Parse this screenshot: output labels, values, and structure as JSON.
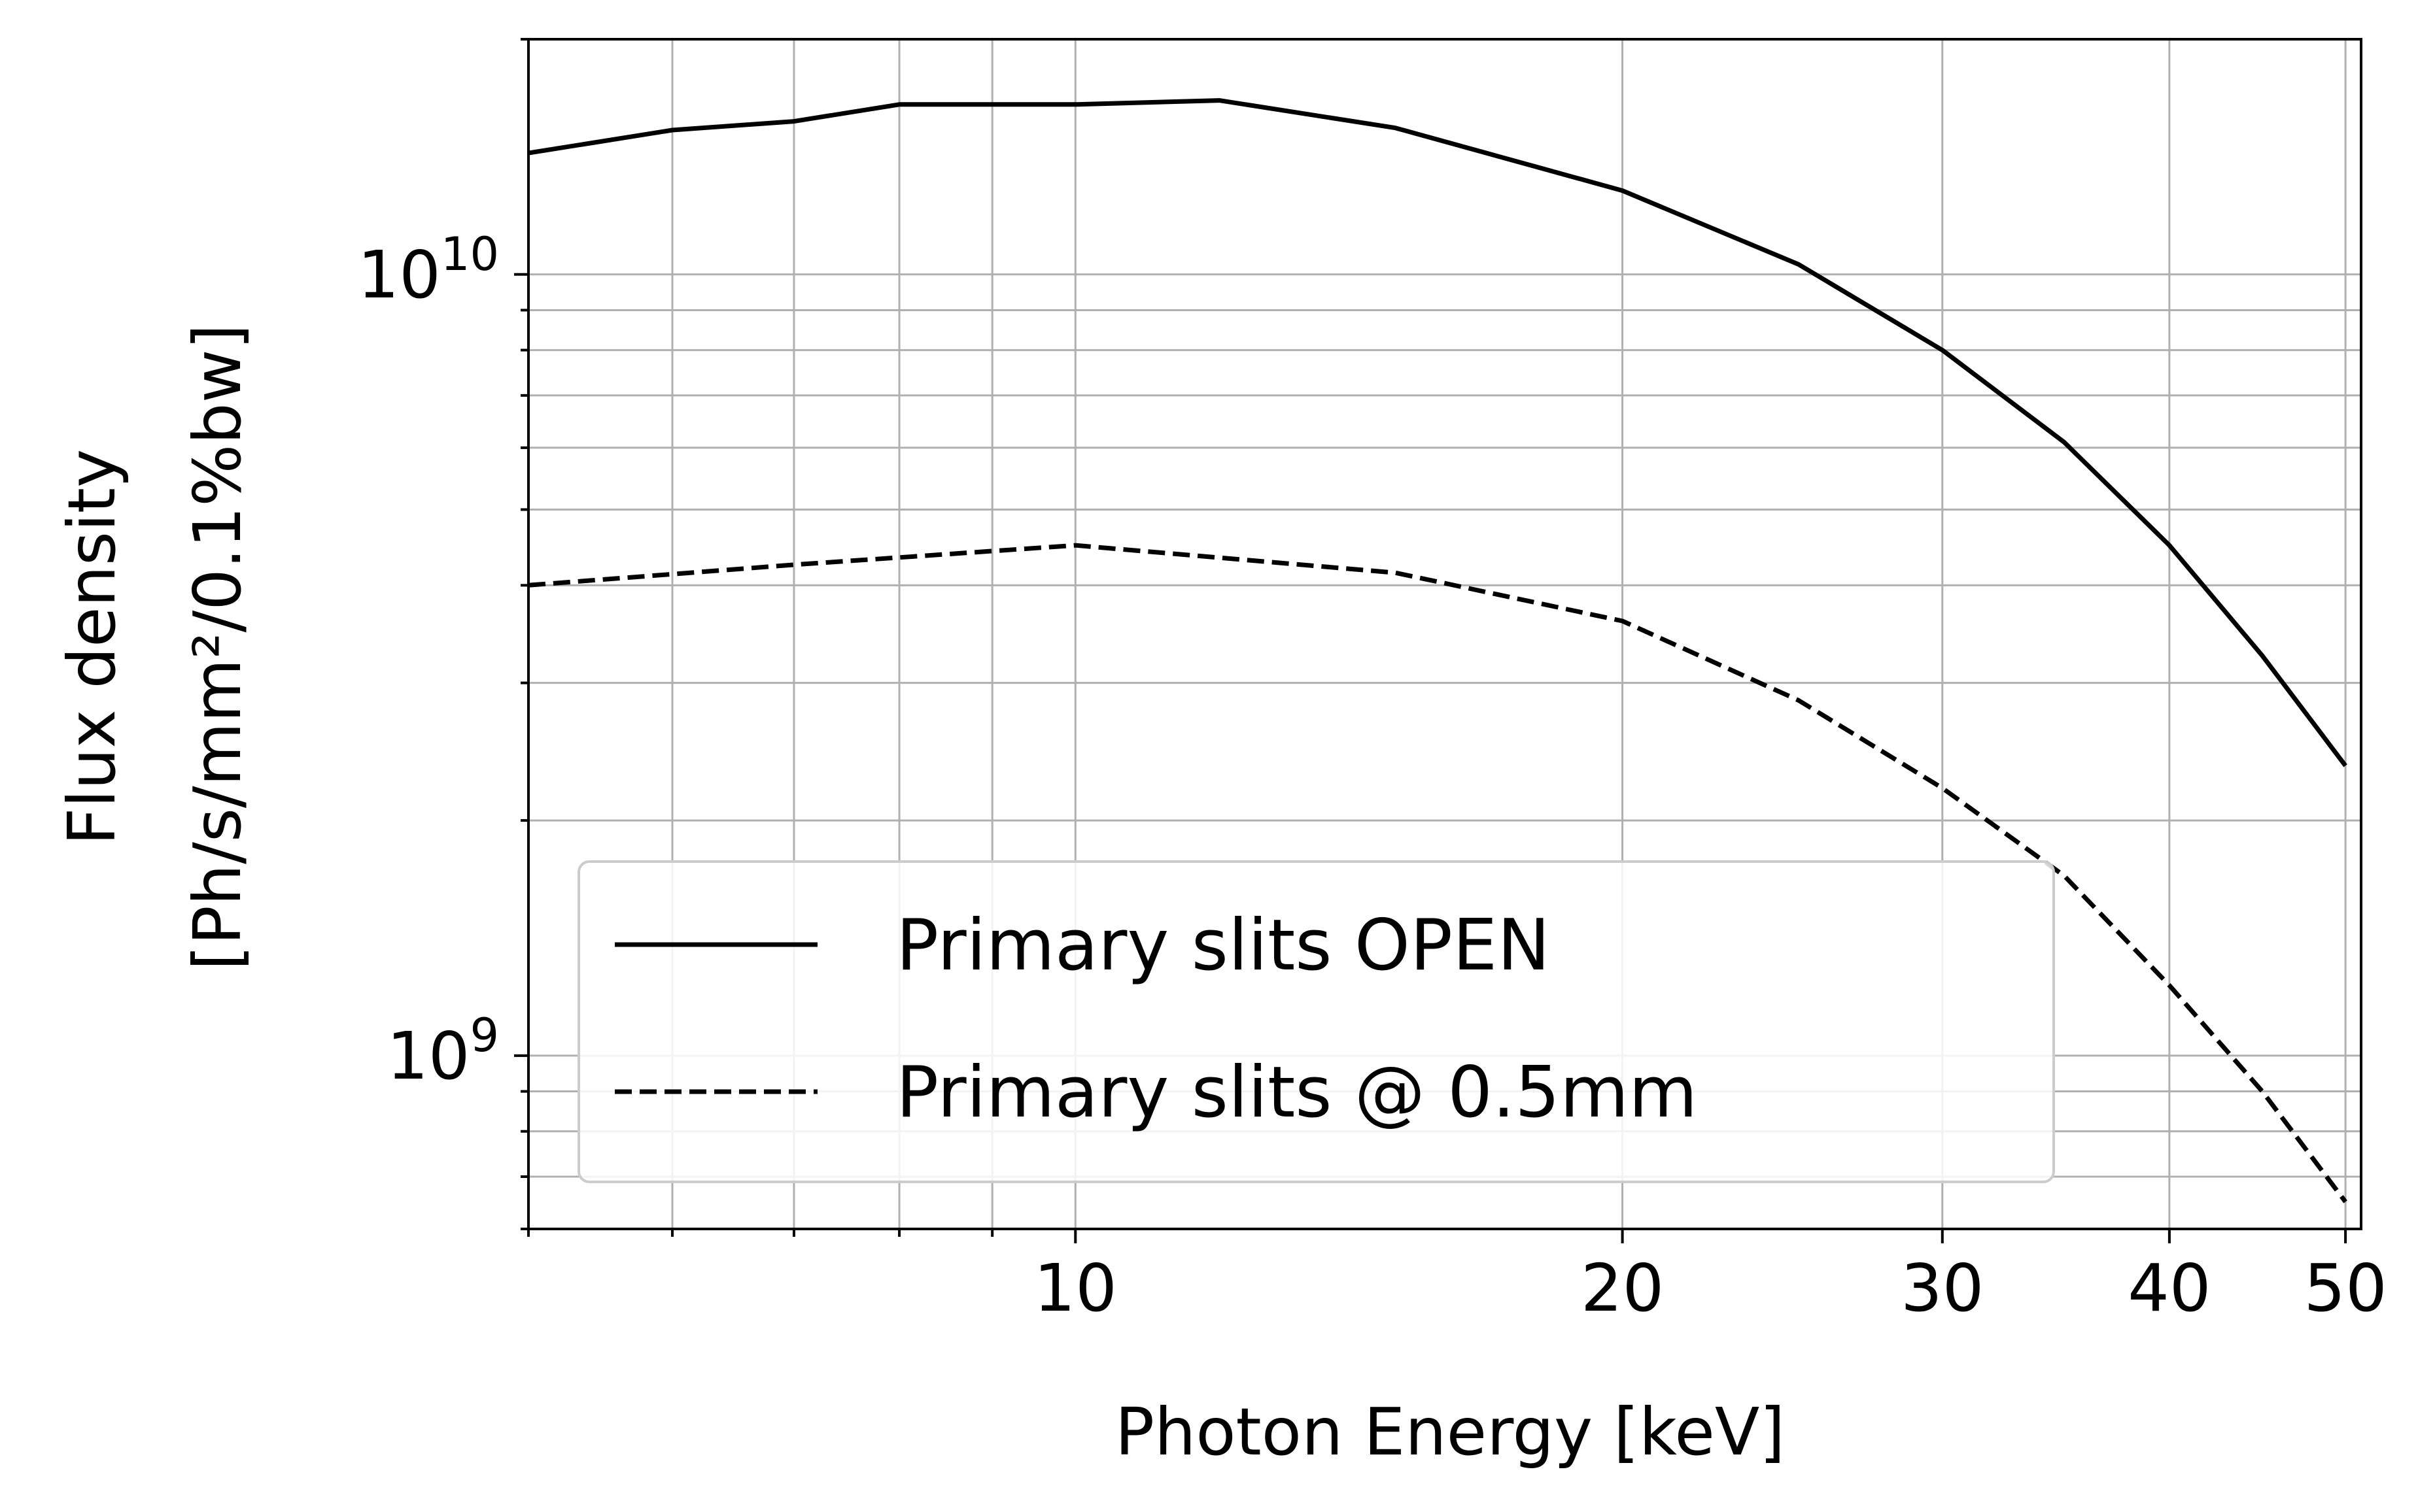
{
  "chart_data": {
    "type": "line",
    "x_scale": "log",
    "y_scale": "log",
    "xlim": [
      5,
      51
    ],
    "ylim": [
      600000000.0,
      20000000000.0
    ],
    "xlabel": "Photon Energy [keV]",
    "ylabel_line1": "Flux density",
    "ylabel_line2": "[Ph/s/mm²/0.1%bw]",
    "x_ticks": [
      {
        "value": 10,
        "label": "10"
      },
      {
        "value": 20,
        "label": "20"
      },
      {
        "value": 30,
        "label": "30"
      },
      {
        "value": 40,
        "label": "40"
      },
      {
        "value": 50,
        "label": "50"
      }
    ],
    "y_ticks": [
      {
        "value": 1000000000.0,
        "base": "10",
        "exp": "9"
      },
      {
        "value": 10000000000.0,
        "base": "10",
        "exp": "10"
      }
    ],
    "grid": true,
    "legend_position": "lower-left",
    "series": [
      {
        "name": "Primary slits OPEN",
        "style": "solid",
        "color": "#000000",
        "x": [
          5,
          6,
          7,
          8,
          10,
          12,
          15,
          20,
          25,
          30,
          35,
          40,
          45,
          50
        ],
        "y": [
          14300000000.0,
          15300000000.0,
          15700000000.0,
          16500000000.0,
          16500000000.0,
          16700000000.0,
          15400000000.0,
          12800000000.0,
          10300000000.0,
          8000000000.0,
          6100000000.0,
          4500000000.0,
          3250000000.0,
          2350000000.0
        ]
      },
      {
        "name": "Primary slits @ 0.5mm",
        "style": "dashed",
        "color": "#000000",
        "x": [
          5,
          7,
          10,
          15,
          20,
          25,
          30,
          35,
          40,
          45,
          50
        ],
        "y": [
          4000000000.0,
          4250000000.0,
          4500000000.0,
          4150000000.0,
          3600000000.0,
          2850000000.0,
          2200000000.0,
          1700000000.0,
          1230000000.0,
          900000000.0,
          650000000.0
        ]
      }
    ]
  }
}
